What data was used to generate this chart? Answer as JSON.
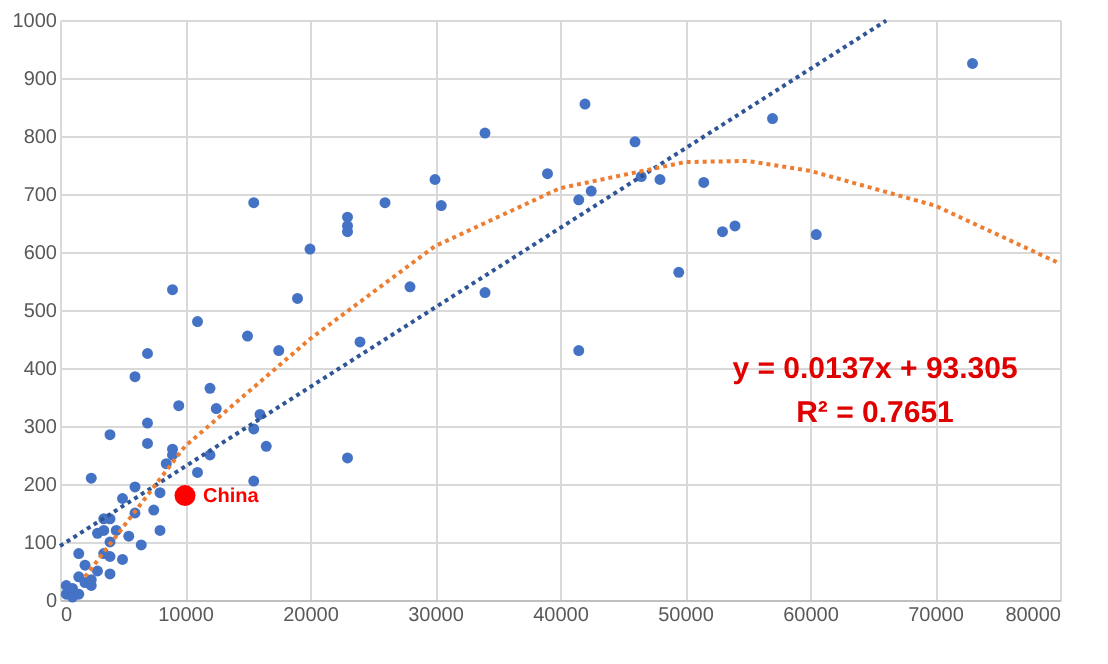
{
  "chart_data": {
    "type": "scatter",
    "xlim": [
      0,
      80000
    ],
    "xticks": [
      0,
      10000,
      20000,
      30000,
      40000,
      50000,
      60000,
      70000,
      80000
    ],
    "ylim": [
      0,
      1000
    ],
    "yticks": [
      0,
      100,
      200,
      300,
      400,
      500,
      600,
      700,
      800,
      900,
      1000
    ],
    "grid": true,
    "marker": "circle",
    "annotations": [
      "y = 0.0137x + 93.305",
      "R² = 0.7651"
    ],
    "series": [
      {
        "color": "#4472c4",
        "x": [
          73000,
          57000,
          54000,
          53000,
          51500,
          60500,
          49500,
          48000,
          46500,
          46000,
          42000,
          42500,
          41500,
          41500,
          39000,
          34000,
          34000,
          30000,
          30500,
          28000,
          26000,
          23000,
          23000,
          23000,
          23000,
          24000,
          20000,
          19000,
          15500,
          17500,
          16000,
          15500,
          15000,
          15500,
          16500,
          12500,
          12000,
          11000,
          9000,
          9500,
          9000,
          9000,
          8500,
          11000,
          12000,
          7000,
          6000,
          7000,
          7000,
          4000,
          2500,
          8000,
          6000,
          5000,
          4000,
          3500,
          3000,
          3500,
          4500,
          4000,
          6000,
          5500,
          6500,
          7500,
          8000,
          5000,
          3500,
          4000,
          3000,
          2500,
          2000,
          1500,
          1500,
          1000,
          500,
          1000,
          2000,
          4000,
          1500,
          500,
          2500
        ],
        "values": [
          925,
          830,
          645,
          635,
          720,
          630,
          565,
          725,
          730,
          790,
          855,
          705,
          690,
          430,
          735,
          805,
          530,
          725,
          680,
          540,
          685,
          660,
          645,
          635,
          245,
          445,
          605,
          520,
          685,
          430,
          320,
          295,
          455,
          205,
          265,
          330,
          365,
          480,
          535,
          335,
          260,
          250,
          235,
          220,
          250,
          425,
          385,
          305,
          270,
          285,
          210,
          185,
          195,
          175,
          140,
          140,
          115,
          120,
          120,
          100,
          150,
          110,
          95,
          155,
          120,
          70,
          80,
          75,
          50,
          35,
          60,
          80,
          40,
          20,
          10,
          5,
          30,
          45,
          10,
          25,
          25
        ]
      },
      {
        "type": "scatter",
        "name": "China",
        "color": "#ff0000",
        "x": [
          10000
        ],
        "values": [
          180
        ]
      },
      {
        "type": "line",
        "color": "#2f5597",
        "line_style": "dotted",
        "marker": "none",
        "x": [
          0,
          66100
        ],
        "values": [
          93,
          999
        ]
      },
      {
        "type": "line",
        "color": "#ed7d31",
        "line_style": "dotted",
        "marker": "none",
        "x": [
          2000,
          10000,
          20000,
          30000,
          40000,
          50000,
          55000,
          60000,
          70000,
          80000
        ],
        "values": [
          40,
          265,
          450,
          610,
          710,
          755,
          757,
          740,
          680,
          580
        ]
      }
    ]
  }
}
